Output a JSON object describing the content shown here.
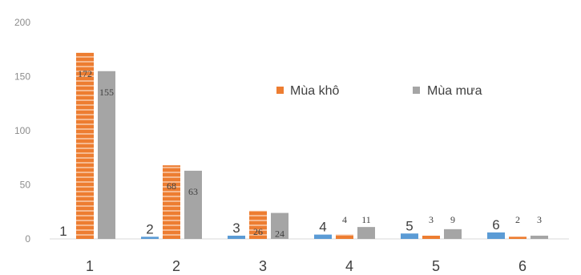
{
  "chart_data": {
    "type": "bar",
    "categories": [
      "1",
      "2",
      "3",
      "4",
      "5",
      "6"
    ],
    "ylim": [
      0,
      200
    ],
    "yticks": [
      "0",
      "50",
      "100",
      "150",
      "200"
    ],
    "grid": false,
    "legend_position": "right",
    "category_labels": [
      "1",
      "2",
      "3",
      "4",
      "5",
      "6"
    ],
    "series": [
      {
        "name": "",
        "values": [
          0,
          2,
          3,
          4,
          5,
          6
        ],
        "color": "#5b9bd5",
        "show_labels": false
      },
      {
        "name": "Mùa khô",
        "values": [
          172,
          68,
          26,
          4,
          3,
          2
        ],
        "color": "#ed7d31",
        "show_labels": true
      },
      {
        "name": "Mùa mưa",
        "values": [
          155,
          63,
          24,
          11,
          9,
          3
        ],
        "color": "#a5a5a5",
        "show_labels": true
      }
    ],
    "data_labels": {
      "dry": [
        "172",
        "68",
        "26",
        "4",
        "3",
        "2"
      ],
      "wet": [
        "155",
        "63",
        "24",
        "11",
        "9",
        "3"
      ]
    }
  }
}
